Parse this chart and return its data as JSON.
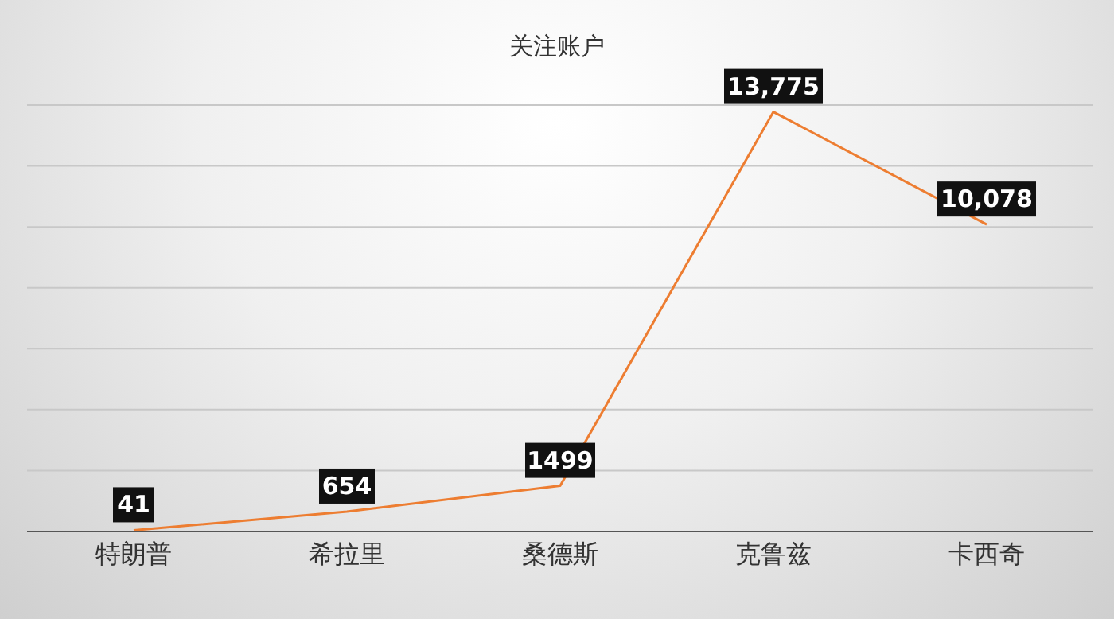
{
  "chart_data": {
    "type": "line",
    "title": "关注账户",
    "categories": [
      "特朗普",
      "希拉里",
      "桑德斯",
      "克鲁兹",
      "卡西奇"
    ],
    "series": [
      {
        "color": "#ed7d31",
        "values": [
          41,
          654,
          1499,
          13775,
          10078
        ],
        "value_labels": [
          "41",
          "654",
          "1499",
          "13,775",
          "10,078"
        ]
      }
    ],
    "ylim": [
      0,
      14000
    ],
    "yticks": [
      {
        "value": 0,
        "label": null
      },
      {
        "value": 2000,
        "label": null
      },
      {
        "value": 4000,
        "label": null
      },
      {
        "value": 6000,
        "label": null
      },
      {
        "value": 8000,
        "label": null
      },
      {
        "value": 10000,
        "label": null
      },
      {
        "value": 12000,
        "label": null
      },
      {
        "value": 14000,
        "label": null
      }
    ],
    "tick_labels": "x",
    "grid": "y",
    "legend": false,
    "marker": "none",
    "line_style": "solid"
  }
}
